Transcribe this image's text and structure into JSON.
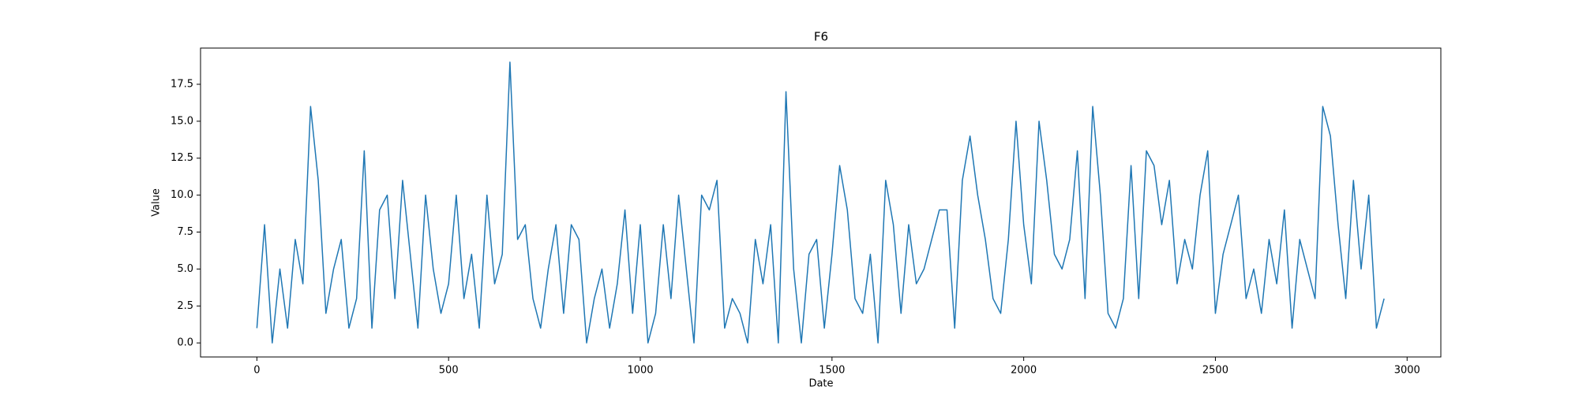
{
  "chart_data": {
    "type": "line",
    "title": "F6",
    "x_label": "Date",
    "y_label": "Value",
    "x": [
      0,
      20,
      40,
      60,
      80,
      100,
      120,
      140,
      160,
      180,
      200,
      220,
      240,
      260,
      280,
      300,
      320,
      340,
      360,
      380,
      400,
      420,
      440,
      460,
      480,
      500,
      520,
      540,
      560,
      580,
      600,
      620,
      640,
      660,
      680,
      700,
      720,
      740,
      760,
      780,
      800,
      820,
      840,
      860,
      880,
      900,
      920,
      940,
      960,
      980,
      1000,
      1020,
      1040,
      1060,
      1080,
      1100,
      1120,
      1140,
      1160,
      1180,
      1200,
      1220,
      1240,
      1260,
      1280,
      1300,
      1320,
      1340,
      1360,
      1380,
      1400,
      1420,
      1440,
      1460,
      1480,
      1500,
      1520,
      1540,
      1560,
      1580,
      1600,
      1620,
      1640,
      1660,
      1680,
      1700,
      1720,
      1740,
      1760,
      1780,
      1800,
      1820,
      1840,
      1860,
      1880,
      1900,
      1920,
      1940,
      1960,
      1980,
      2000,
      2020,
      2040,
      2060,
      2080,
      2100,
      2120,
      2140,
      2160,
      2180,
      2200,
      2220,
      2240,
      2260,
      2280,
      2300,
      2320,
      2340,
      2360,
      2380,
      2400,
      2420,
      2440,
      2460,
      2480,
      2500,
      2520,
      2540,
      2560,
      2580,
      2600,
      2620,
      2640,
      2660,
      2680,
      2700,
      2720,
      2740,
      2760,
      2780,
      2800,
      2820,
      2840,
      2860,
      2880,
      2900,
      2920,
      2940
    ],
    "series": [
      {
        "name": "F6",
        "color": "#1f77b4",
        "values": [
          1,
          8,
          0,
          5,
          1,
          7,
          4,
          16,
          11,
          2,
          5,
          7,
          1,
          3,
          13,
          1,
          9,
          10,
          3,
          11,
          6,
          1,
          10,
          5,
          2,
          4,
          10,
          3,
          6,
          1,
          10,
          4,
          6,
          19,
          7,
          8,
          3,
          1,
          5,
          8,
          2,
          8,
          7,
          0,
          3,
          5,
          1,
          4,
          9,
          2,
          8,
          0,
          2,
          8,
          3,
          10,
          5,
          0,
          10,
          9,
          11,
          1,
          3,
          2,
          0,
          7,
          4,
          8,
          0,
          17,
          5,
          0,
          6,
          7,
          1,
          6,
          12,
          9,
          3,
          2,
          6,
          0,
          11,
          8,
          2,
          8,
          4,
          5,
          7,
          9,
          9,
          1,
          11,
          14,
          10,
          7,
          3,
          2,
          7,
          15,
          8,
          4,
          15,
          11,
          6,
          5,
          7,
          13,
          3,
          16,
          10,
          2,
          1,
          3,
          12,
          3,
          13,
          12,
          8,
          11,
          4,
          7,
          5,
          10,
          13,
          2,
          6,
          8,
          10,
          3,
          5,
          2,
          7,
          4,
          9,
          1,
          7,
          5,
          3,
          16,
          14,
          8,
          3,
          11,
          5,
          10,
          1,
          3
        ]
      }
    ],
    "xlim": [
      -147,
      3088
    ],
    "ylim": [
      -0.95,
      19.95
    ],
    "xticks": [
      0,
      500,
      1000,
      1500,
      2000,
      2500,
      3000
    ],
    "yticks": [
      {
        "value": 0,
        "label": "0.0"
      },
      {
        "value": 2.5,
        "label": "2.5"
      },
      {
        "value": 5,
        "label": "5.0"
      },
      {
        "value": 7.5,
        "label": "7.5"
      },
      {
        "value": 10,
        "label": "10.0"
      },
      {
        "value": 12.5,
        "label": "12.5"
      },
      {
        "value": 15,
        "label": "15.0"
      },
      {
        "value": 17.5,
        "label": "17.5"
      }
    ]
  }
}
